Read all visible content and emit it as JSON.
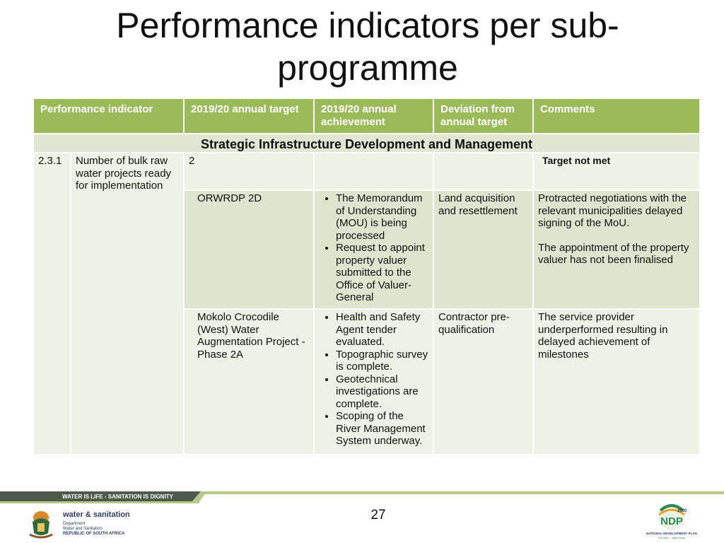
{
  "title": "Performance indicators per sub-programme",
  "table": {
    "headers": [
      "Performance indicator",
      "2019/20 annual target",
      "2019/20 annual achievement",
      "Deviation from annual target",
      "Comments"
    ],
    "section": "Strategic Infrastructure Development and Management",
    "row1": {
      "number": "2.3.1",
      "indicator": "Number of bulk raw water projects ready for implementation",
      "target": "2",
      "comment": "Target not  met"
    },
    "row2": {
      "project": "ORWRDP 2D",
      "achievement": [
        "The Memorandum of Understanding (MOU) is being processed",
        "Request to appoint property valuer submitted to the Office of Valuer-General"
      ],
      "deviation": "Land acquisition and resettlement",
      "comment1": "Protracted negotiations with the relevant municipalities delayed signing of the MoU.",
      "comment2": "The appointment of the property valuer has not been finalised"
    },
    "row3": {
      "project": "Mokolo Crocodile (West)  Water Augmentation Project - Phase 2A",
      "achievement": [
        "Health and Safety Agent tender evaluated.",
        "Topographic  survey is complete.",
        "Geotechnical investigations are complete.",
        "Scoping of the River Management System underway."
      ],
      "deviation": "Contractor pre-qualification",
      "comment": "The service provider underperformed resulting in delayed achievement of milestones"
    }
  },
  "footer": {
    "banner": "WATER IS LIFE - SANITATION IS DIGNITY",
    "page_number": "27",
    "dept_name": "water & sanitation",
    "dept_lines": [
      "Department:",
      "Water and Sanitation",
      "REPUBLIC OF SOUTH AFRICA"
    ],
    "ndp_year": "2030",
    "ndp_abbr": "NDP",
    "ndp_name": "NATIONAL DEVELOPMENT PLAN",
    "ndp_tagline": "Our future - make it work"
  },
  "colors": {
    "header_green": "#9bbb59",
    "section_bg": "#dfe6d2",
    "cell_bg": "#eef1e6",
    "cell_alt_bg": "#dde5cf",
    "banner_dark": "#4e5a4a",
    "banner_light": "#b6c98d"
  }
}
